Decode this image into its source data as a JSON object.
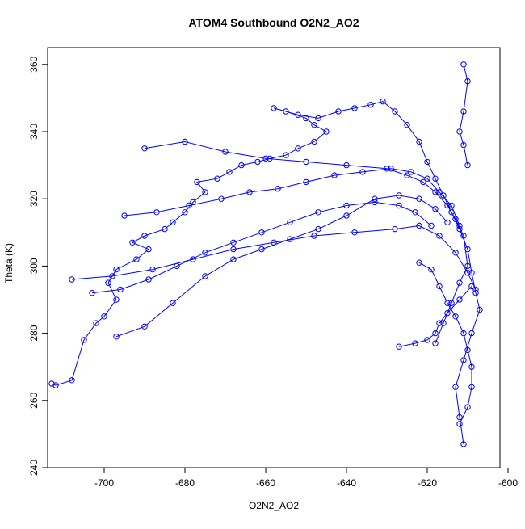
{
  "chart_data": {
    "type": "scatter",
    "title": "ATOM4 Southbound O2N2_AO2",
    "xlabel": "O2N2_AO2",
    "ylabel": "Theta (K)",
    "xlim": [
      -714,
      -602
    ],
    "ylim": [
      240,
      365
    ],
    "xticks": [
      -700,
      -680,
      -660,
      -640,
      -620,
      -600
    ],
    "yticks": [
      240,
      260,
      280,
      300,
      320,
      340,
      360
    ],
    "grid": false,
    "legend": "none",
    "marker": "open-circle",
    "connected": true,
    "color": "#0000ff",
    "series": [
      {
        "x": [
          -713,
          -712,
          -708,
          -705,
          -702,
          -700,
          -697,
          -699,
          -697,
          -692,
          -689,
          -693,
          -690,
          -685,
          -683,
          -680,
          -678,
          -675,
          -677,
          -672,
          -669,
          -666,
          -662,
          -659,
          -655,
          -652,
          -648,
          -645,
          -648,
          -650,
          -655,
          -658,
          -652,
          -647,
          -642,
          -638,
          -634,
          -631,
          -628,
          -625,
          -622,
          -620,
          -618,
          -616,
          -614,
          -612,
          -610,
          -609,
          -608,
          -607,
          -609,
          -611,
          -613,
          -612,
          -611
        ],
        "y": [
          265,
          264.5,
          266,
          278,
          283,
          285,
          290,
          295,
          299,
          302,
          305,
          307,
          309,
          311,
          313,
          316,
          319,
          322,
          325,
          326,
          328,
          330,
          331,
          332,
          333,
          335,
          337,
          340,
          342,
          344,
          346,
          347,
          345,
          344,
          346,
          347,
          348,
          349,
          346,
          342,
          337,
          331,
          326,
          321,
          316,
          311,
          305,
          298,
          292,
          287,
          280,
          272,
          264,
          255,
          247
        ]
      },
      {
        "x": [
          -690,
          -680,
          -670,
          -660,
          -650,
          -640,
          -630,
          -625,
          -621,
          -618,
          -615,
          -613,
          -611,
          -610,
          -612,
          -614,
          -616,
          -618
        ],
        "y": [
          335,
          337,
          334,
          332,
          331,
          330,
          329,
          327,
          325,
          322,
          318,
          314,
          309,
          300,
          295,
          289,
          283,
          277
        ]
      },
      {
        "x": [
          -708,
          -698,
          -688,
          -678,
          -668,
          -658,
          -648,
          -638,
          -628,
          -622,
          -617,
          -613,
          -610,
          -608
        ],
        "y": [
          296,
          297,
          299,
          302,
          305,
          307,
          309,
          310,
          311,
          312,
          309,
          304,
          298,
          293
        ]
      },
      {
        "x": [
          -697,
          -690,
          -683,
          -675,
          -668,
          -661,
          -654,
          -647,
          -640,
          -633,
          -627,
          -622,
          -618,
          -615
        ],
        "y": [
          279,
          282,
          289,
          297,
          302,
          305,
          308,
          311,
          315,
          320,
          321,
          320,
          317,
          313
        ]
      },
      {
        "x": [
          -695,
          -687,
          -679,
          -671,
          -664,
          -657,
          -650,
          -643,
          -636,
          -629,
          -624,
          -620,
          -617,
          -614,
          -612
        ],
        "y": [
          315,
          316,
          318,
          320,
          322,
          323,
          325,
          327,
          328,
          329,
          328,
          326,
          322,
          318,
          312
        ]
      },
      {
        "x": [
          -703,
          -696,
          -689,
          -682,
          -675,
          -668,
          -661,
          -654,
          -647,
          -640,
          -633,
          -627,
          -623,
          -619
        ],
        "y": [
          292,
          293,
          296,
          300,
          304,
          307,
          310,
          313,
          316,
          318,
          319,
          318,
          316,
          312
        ]
      },
      {
        "x": [
          -622,
          -619,
          -617,
          -615,
          -613,
          -611,
          -610,
          -609,
          -609,
          -610,
          -612
        ],
        "y": [
          301,
          299,
          294,
          289,
          285,
          280,
          275,
          270,
          264,
          258,
          253
        ]
      },
      {
        "x": [
          -627,
          -623,
          -620,
          -618,
          -617,
          -615,
          -612,
          -609
        ],
        "y": [
          276,
          277,
          278,
          280,
          283,
          286,
          290,
          294
        ]
      },
      {
        "x": [
          -611,
          -610,
          -611,
          -612,
          -611,
          -610
        ],
        "y": [
          360,
          355,
          346,
          340,
          336,
          330
        ]
      }
    ]
  }
}
